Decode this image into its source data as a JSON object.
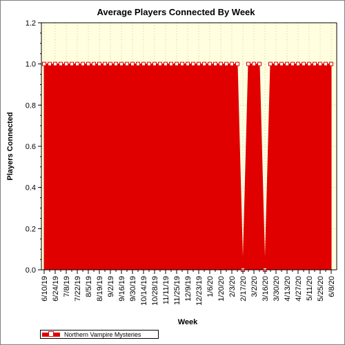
{
  "chart_data": {
    "type": "area",
    "title": "Average Players Connected By Week",
    "xlabel": "Week",
    "ylabel": "Players Connected",
    "ylim": [
      0,
      1.2
    ],
    "yticks": [
      "0.0",
      "0.2",
      "0.4",
      "0.6",
      "0.8",
      "1.0",
      "1.2"
    ],
    "grid": true,
    "legend_position": "bottom-left",
    "colors": {
      "series": "#e00000",
      "plot_background": "#ffffe0",
      "grid": "#c8c8a0"
    },
    "x": [
      "6/10/19",
      "6/17/19",
      "6/24/19",
      "7/1/19",
      "7/8/19",
      "7/15/19",
      "7/22/19",
      "7/29/19",
      "8/5/19",
      "8/12/19",
      "8/19/19",
      "8/26/19",
      "9/2/19",
      "9/9/19",
      "9/16/19",
      "9/23/19",
      "9/30/19",
      "10/7/19",
      "10/14/19",
      "10/21/19",
      "10/28/19",
      "11/4/19",
      "11/11/19",
      "11/18/19",
      "11/25/19",
      "12/2/19",
      "12/9/19",
      "12/16/19",
      "12/23/19",
      "12/30/19",
      "1/6/20",
      "1/13/20",
      "1/20/20",
      "1/27/20",
      "2/3/20",
      "2/10/20",
      "2/17/20",
      "2/24/20",
      "3/2/20",
      "3/9/20",
      "3/16/20",
      "3/23/20",
      "3/30/20",
      "4/6/20",
      "4/13/20",
      "4/20/20",
      "4/27/20",
      "5/4/20",
      "5/11/20",
      "5/18/20",
      "5/25/20",
      "6/1/20",
      "6/8/20"
    ],
    "tick_labels": [
      "6/10/19",
      "6/24/19",
      "7/8/19",
      "7/22/19",
      "8/5/19",
      "8/19/19",
      "9/2/19",
      "9/16/19",
      "9/30/19",
      "10/14/19",
      "10/28/19",
      "11/11/19",
      "11/25/19",
      "12/9/19",
      "12/23/19",
      "1/6/20",
      "1/20/20",
      "2/3/20",
      "2/17/20",
      "3/2/20",
      "3/16/20",
      "3/30/20",
      "4/13/20",
      "4/27/20",
      "5/11/20",
      "5/25/20",
      "6/8/20"
    ],
    "series": [
      {
        "name": "Northern Vampire Mysteries",
        "values": [
          1,
          1,
          1,
          1,
          1,
          1,
          1,
          1,
          1,
          1,
          1,
          1,
          1,
          1,
          1,
          1,
          1,
          1,
          1,
          1,
          1,
          1,
          1,
          1,
          1,
          1,
          1,
          1,
          1,
          1,
          1,
          1,
          1,
          1,
          1,
          1,
          0,
          1,
          1,
          1,
          0,
          1,
          1,
          1,
          1,
          1,
          1,
          1,
          1,
          1,
          1,
          1,
          1
        ]
      }
    ]
  }
}
